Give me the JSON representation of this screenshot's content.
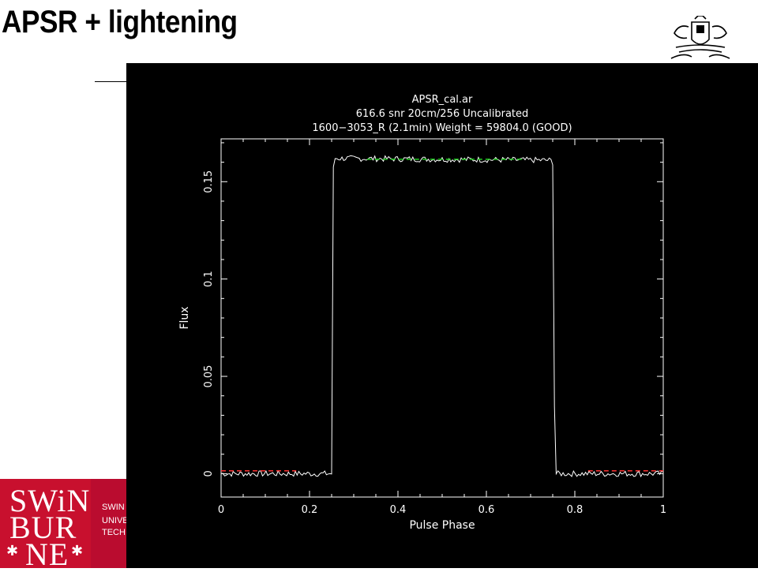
{
  "slide": {
    "title": "APSR + lightening"
  },
  "branding": {
    "logo_lines": [
      "SWiN",
      "BUR",
      "NE"
    ],
    "strip_lines": [
      "SWIN",
      "UNIVE",
      "TECH"
    ]
  },
  "chart_data": {
    "type": "line",
    "title": [
      "APSR_cal.ar",
      "616.6 snr  20cm/256 Uncalibrated",
      "1600−3053_R  (2.1min)  Weight = 59804.0 (GOOD)"
    ],
    "xlabel": "Pulse Phase",
    "ylabel": "Flux",
    "xlim": [
      0,
      1
    ],
    "ylim": [
      -0.012,
      0.172
    ],
    "x_ticks": [
      0,
      0.2,
      0.4,
      0.6,
      0.8,
      1
    ],
    "x_tick_labels": [
      "0",
      "0.2",
      "0.4",
      "0.6",
      "0.8",
      "1"
    ],
    "y_ticks": [
      0,
      0.05,
      0.1,
      0.15
    ],
    "y_tick_labels": [
      "0",
      "0.05",
      "0.1",
      "0.15"
    ],
    "series": [
      {
        "type": "line",
        "color": "#ffffff",
        "x": [
          0.0,
          0.25,
          0.253,
          0.257,
          0.745,
          0.75,
          0.755,
          1.0
        ],
        "y": [
          0.0,
          0.0,
          0.155,
          0.162,
          0.161,
          0.16,
          0.0,
          0.0
        ]
      },
      {
        "type": "dashed-segment",
        "color": "#ff3333",
        "x": [
          0.0,
          0.17
        ],
        "y": [
          0.0015,
          0.0015
        ]
      },
      {
        "type": "dashed-segment",
        "color": "#ff3333",
        "x": [
          0.83,
          1.0
        ],
        "y": [
          0.0015,
          0.0015
        ]
      },
      {
        "type": "dashed-segment",
        "color": "#22cc22",
        "x": [
          0.33,
          0.68
        ],
        "y": [
          0.1615,
          0.1615
        ]
      }
    ],
    "grid": false,
    "background": "#000000",
    "axis_color": "#ffffff"
  }
}
